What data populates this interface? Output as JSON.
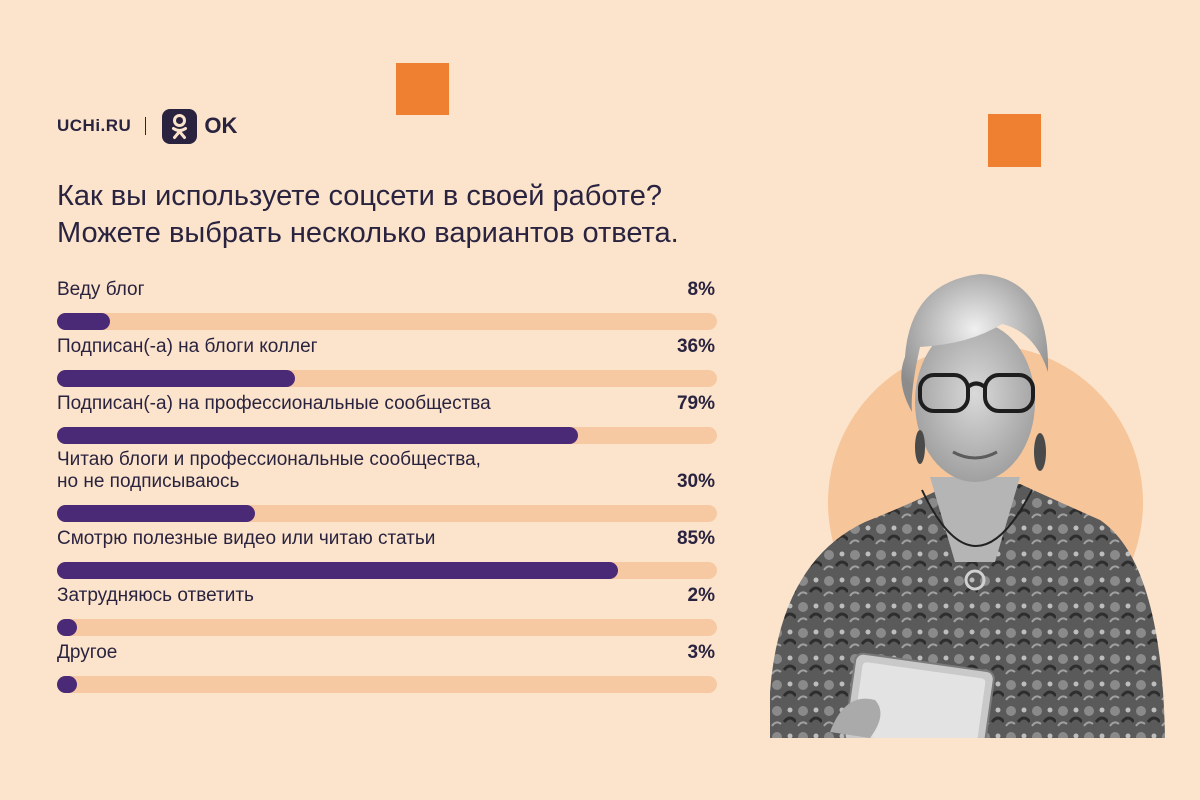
{
  "brand": {
    "uchi": "UCHi.RU",
    "ok": "OK"
  },
  "question": {
    "line1": "Как вы используете соцсети в своей работе?",
    "line2": "Можете выбрать несколько вариантов ответа."
  },
  "colors": {
    "background": "#fbe4cb",
    "accent": "#ef8031",
    "bar_fill": "#4a2a76",
    "bar_track": "#f6c9a2",
    "text": "#2a2340"
  },
  "chart_data": {
    "type": "bar",
    "orientation": "horizontal",
    "title": "Как вы используете соцсети в своей работе? Можете выбрать несколько вариантов ответа.",
    "unit": "%",
    "xlim": [
      0,
      100
    ],
    "grid": false,
    "categories": [
      [
        "Веду блог"
      ],
      [
        "Подписан(-а) на блоги коллег"
      ],
      [
        "Подписан(-а) на профессиональные сообщества"
      ],
      [
        "Читаю блоги и профессиональные сообщества,",
        "но не подписываюсь"
      ],
      [
        "Смотрю полезные видео или читаю статьи"
      ],
      [
        "Затрудняюсь ответить"
      ],
      [
        "Другое"
      ]
    ],
    "values": [
      8,
      36,
      79,
      30,
      85,
      2,
      3
    ],
    "value_labels": [
      "8%",
      "36%",
      "79%",
      "30%",
      "85%",
      "2%",
      "3%"
    ]
  }
}
